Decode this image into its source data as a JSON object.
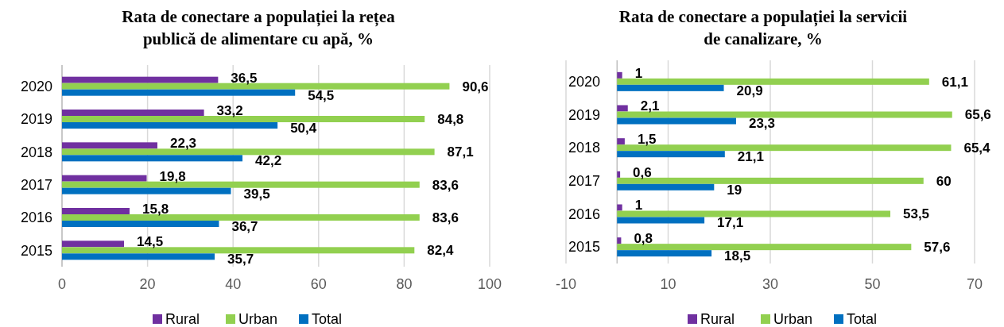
{
  "chart_data": [
    {
      "type": "bar",
      "orientation": "horizontal",
      "title": "Rata de conectare a populației la rețea publică de alimentare cu apă, %",
      "categories": [
        "2020",
        "2019",
        "2018",
        "2017",
        "2016",
        "2015"
      ],
      "series": [
        {
          "name": "Rural",
          "color": "#7030a0",
          "values": [
            36.5,
            33.2,
            22.3,
            19.8,
            15.8,
            14.5
          ],
          "value_labels": [
            "36,5",
            "33,2",
            "22,3",
            "19,8",
            "15,8",
            "14,5"
          ]
        },
        {
          "name": "Urban",
          "color": "#92d050",
          "values": [
            90.6,
            84.8,
            87.1,
            83.6,
            83.6,
            82.4
          ],
          "value_labels": [
            "90,6",
            "84,8",
            "87,1",
            "83,6",
            "83,6",
            "82,4"
          ]
        },
        {
          "name": "Total",
          "color": "#0070c0",
          "values": [
            54.5,
            50.4,
            42.2,
            39.5,
            36.7,
            35.7
          ],
          "value_labels": [
            "54,5",
            "50,4",
            "42,2",
            "39,5",
            "36,7",
            "35,7"
          ]
        }
      ],
      "xlim": [
        0,
        100
      ],
      "xticks": [
        0,
        20,
        40,
        60,
        80,
        100
      ],
      "grid": "x",
      "legend": "bottom"
    },
    {
      "type": "bar",
      "orientation": "horizontal",
      "title": "Rata de conectare a populației la servicii de canalizare, %",
      "categories": [
        "2020",
        "2019",
        "2018",
        "2017",
        "2016",
        "2015"
      ],
      "series": [
        {
          "name": "Rural",
          "color": "#7030a0",
          "values": [
            1,
            2.1,
            1.5,
            0.6,
            1,
            0.8
          ],
          "value_labels": [
            "1",
            "2,1",
            "1,5",
            "0,6",
            "1",
            "0,8"
          ]
        },
        {
          "name": "Urban",
          "color": "#92d050",
          "values": [
            61.1,
            65.6,
            65.4,
            60,
            53.5,
            57.6
          ],
          "value_labels": [
            "61,1",
            "65,6",
            "65,4",
            "60",
            "53,5",
            "57,6"
          ]
        },
        {
          "name": "Total",
          "color": "#0070c0",
          "values": [
            20.9,
            23.3,
            21.1,
            19,
            17.1,
            18.5
          ],
          "value_labels": [
            "20,9",
            "23,3",
            "21,1",
            "19",
            "17,1",
            "18,5"
          ]
        }
      ],
      "xlim": [
        -10,
        70
      ],
      "xticks": [
        -10,
        10,
        30,
        50,
        70
      ],
      "grid": "x",
      "legend": "bottom"
    }
  ]
}
